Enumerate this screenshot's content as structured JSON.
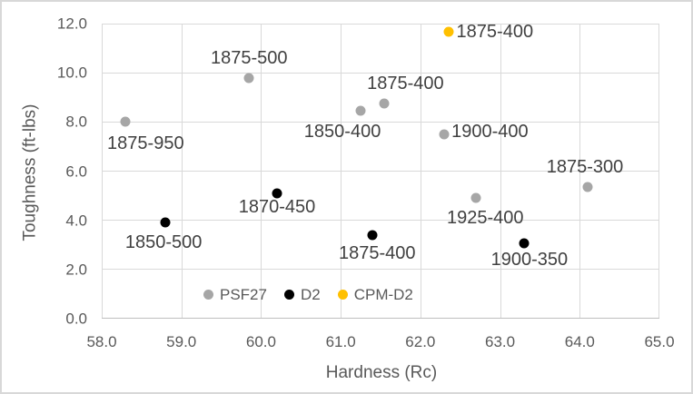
{
  "chart_data": {
    "type": "scatter",
    "title": "",
    "xlabel": "Hardness (Rc)",
    "ylabel": "Toughness (ft-lbs)",
    "xlim": [
      58.0,
      65.0
    ],
    "ylim": [
      0.0,
      12.0
    ],
    "grid": true,
    "x_ticks": [
      58,
      59,
      60,
      61,
      62,
      63,
      64,
      65
    ],
    "x_tick_labels": [
      "58.0",
      "59.0",
      "60.0",
      "61.0",
      "62.0",
      "63.0",
      "64.0",
      "65.0"
    ],
    "y_ticks": [
      0,
      2,
      4,
      6,
      8,
      10,
      12
    ],
    "y_tick_labels": [
      "0.0",
      "2.0",
      "4.0",
      "6.0",
      "8.0",
      "10.0",
      "12.0"
    ],
    "legend_position": "inside-bottom",
    "series": [
      {
        "name": "PSF27",
        "color": "#A6A6A6",
        "points": [
          {
            "x": 58.3,
            "y": 8.0,
            "label": "1875-950",
            "label_pos": "below",
            "label_dx": 22,
            "label_dy": 14
          },
          {
            "x": 59.85,
            "y": 9.8,
            "label": "1875-500",
            "label_pos": "above",
            "label_dx": 0,
            "label_dy": 12
          },
          {
            "x": 61.25,
            "y": 8.45,
            "label": "1850-400",
            "label_pos": "below",
            "label_dx": -20,
            "label_dy": 13
          },
          {
            "x": 61.55,
            "y": 8.75,
            "label": "1875-400",
            "label_pos": "above",
            "label_dx": 23,
            "label_dy": 12
          },
          {
            "x": 62.3,
            "y": 7.5,
            "label": "1900-400",
            "label_pos": "right",
            "label_dx": 8,
            "label_dy": -3
          },
          {
            "x": 62.7,
            "y": 4.9,
            "label": "1925-400",
            "label_pos": "below",
            "label_dx": 10,
            "label_dy": 12
          },
          {
            "x": 64.1,
            "y": 5.35,
            "label": "1875-300",
            "label_pos": "above",
            "label_dx": -3,
            "label_dy": 12
          }
        ]
      },
      {
        "name": "D2",
        "color": "#000000",
        "points": [
          {
            "x": 58.8,
            "y": 3.9,
            "label": "1850-500",
            "label_pos": "below",
            "label_dx": -2,
            "label_dy": 12
          },
          {
            "x": 60.2,
            "y": 5.1,
            "label": "1870-450",
            "label_pos": "below",
            "label_dx": 0,
            "label_dy": 5
          },
          {
            "x": 61.4,
            "y": 3.4,
            "label": "1875-400",
            "label_pos": "below",
            "label_dx": 5,
            "label_dy": 10
          },
          {
            "x": 63.3,
            "y": 3.05,
            "label": "1900-350",
            "label_pos": "below",
            "label_dx": 6,
            "label_dy": 8
          }
        ]
      },
      {
        "name": "CPM-D2",
        "color": "#FFC000",
        "points": [
          {
            "x": 62.35,
            "y": 11.65,
            "label": "1875-400",
            "label_pos": "right",
            "label_dx": 9,
            "label_dy": 0
          }
        ]
      }
    ]
  },
  "style": {
    "grid_color": "#D9D9D9",
    "axis_line_color": "#BFBFBF",
    "tick_label_color": "#595959",
    "axis_title_color": "#595959",
    "data_label_color": "#404040",
    "background": "#FFFFFF",
    "border_color": "#D8D8D8"
  }
}
